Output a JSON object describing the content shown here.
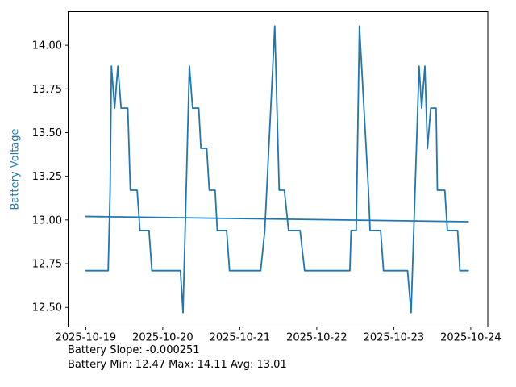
{
  "chart_data": {
    "type": "line",
    "title": "",
    "xlabel": "",
    "ylabel": "Battery Voltage",
    "ylabel_color": "#1f77b4",
    "line_color": "#1f77b4",
    "grid": false,
    "legend": null,
    "x_unit": "hours since 2025-10-19 00:00",
    "xlim": [
      -5.5,
      125.3
    ],
    "ylim": [
      12.388,
      14.192
    ],
    "x_ticks": [
      {
        "t": 0,
        "label": "2025-10-19"
      },
      {
        "t": 24,
        "label": "2025-10-20"
      },
      {
        "t": 48,
        "label": "2025-10-21"
      },
      {
        "t": 72,
        "label": "2025-10-22"
      },
      {
        "t": 96,
        "label": "2025-10-23"
      },
      {
        "t": 120,
        "label": "2025-10-24"
      }
    ],
    "y_ticks": [
      {
        "v": 12.5,
        "label": "12.50"
      },
      {
        "v": 12.75,
        "label": "12.75"
      },
      {
        "v": 13.0,
        "label": "13.00"
      },
      {
        "v": 13.25,
        "label": "13.25"
      },
      {
        "v": 13.5,
        "label": "13.50"
      },
      {
        "v": 13.75,
        "label": "13.75"
      },
      {
        "v": 14.0,
        "label": "14.00"
      }
    ],
    "series": [
      {
        "name": "battery_voltage",
        "points": [
          [
            0,
            12.71
          ],
          [
            7,
            12.71
          ],
          [
            7.6,
            13.17
          ],
          [
            8,
            13.88
          ],
          [
            9,
            13.64
          ],
          [
            10,
            13.88
          ],
          [
            11,
            13.64
          ],
          [
            13.1,
            13.64
          ],
          [
            13.9,
            13.17
          ],
          [
            16,
            13.17
          ],
          [
            16.9,
            12.94
          ],
          [
            19.7,
            12.94
          ],
          [
            20.6,
            12.71
          ],
          [
            29.5,
            12.71
          ],
          [
            30.3,
            12.47
          ],
          [
            32.3,
            13.88
          ],
          [
            33.3,
            13.64
          ],
          [
            35.2,
            13.64
          ],
          [
            35.9,
            13.41
          ],
          [
            37.7,
            13.41
          ],
          [
            38.5,
            13.17
          ],
          [
            40.3,
            13.17
          ],
          [
            41,
            12.94
          ],
          [
            43.9,
            12.94
          ],
          [
            44.8,
            12.71
          ],
          [
            54.5,
            12.71
          ],
          [
            55.8,
            12.94
          ],
          [
            58.9,
            14.11
          ],
          [
            60.3,
            13.17
          ],
          [
            61.9,
            13.17
          ],
          [
            63.2,
            12.94
          ],
          [
            66.8,
            12.94
          ],
          [
            68.2,
            12.71
          ],
          [
            82.3,
            12.71
          ],
          [
            82.7,
            12.94
          ],
          [
            84.3,
            12.94
          ],
          [
            85.3,
            14.11
          ],
          [
            88.1,
            13.17
          ],
          [
            88.6,
            12.94
          ],
          [
            91.9,
            12.94
          ],
          [
            92.8,
            12.71
          ],
          [
            100.3,
            12.71
          ],
          [
            101.4,
            12.47
          ],
          [
            103.9,
            13.88
          ],
          [
            104.7,
            13.64
          ],
          [
            105.7,
            13.88
          ],
          [
            106.5,
            13.41
          ],
          [
            107.5,
            13.64
          ],
          [
            109.2,
            13.64
          ],
          [
            109.6,
            13.17
          ],
          [
            111.9,
            13.17
          ],
          [
            112.7,
            12.94
          ],
          [
            115.9,
            12.94
          ],
          [
            116.6,
            12.71
          ],
          [
            119.2,
            12.71
          ]
        ]
      },
      {
        "name": "trend_line",
        "points": [
          [
            0,
            13.02
          ],
          [
            119.2,
            12.99
          ]
        ]
      }
    ],
    "annotations": [
      "Battery Slope: -0.000251",
      "Battery Min: 12.47 Max: 14.11 Avg: 13.01"
    ],
    "stats": {
      "slope": -0.000251,
      "min": 12.47,
      "max": 14.11,
      "avg": 13.01
    }
  }
}
